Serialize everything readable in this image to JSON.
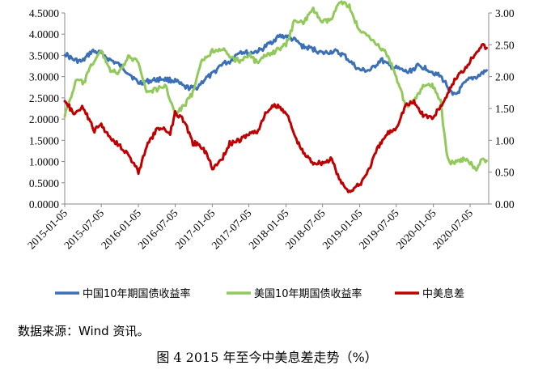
{
  "chart_data": {
    "type": "line",
    "x_ticks": [
      "2015-01-05",
      "2015-07-05",
      "2016-01-05",
      "2016-07-05",
      "2017-01-05",
      "2017-07-05",
      "2018-01-05",
      "2018-07-05",
      "2019-01-05",
      "2019-07-05",
      "2020-01-05",
      "2020-07-05"
    ],
    "y_left": {
      "ticks": [
        "0.0000",
        "0.5000",
        "1.0000",
        "1.5000",
        "2.0000",
        "2.5000",
        "3.0000",
        "3.5000",
        "4.0000",
        "4.5000"
      ],
      "lim": [
        0,
        4.5
      ]
    },
    "y_right": {
      "ticks": [
        "0.00",
        "0.50",
        "1.00",
        "1.50",
        "2.00",
        "2.50",
        "3.00"
      ],
      "lim": [
        0,
        3.0
      ]
    },
    "grid": false,
    "legend_position": "bottom",
    "series": [
      {
        "name": "中国10年期国债收益率",
        "axis": "left",
        "color": "#3b6fb6",
        "points": [
          [
            "2015-01-05",
            3.55
          ],
          [
            "2015-02-15",
            3.4
          ],
          [
            "2015-04-01",
            3.35
          ],
          [
            "2015-05-20",
            3.6
          ],
          [
            "2015-07-05",
            3.55
          ],
          [
            "2015-08-15",
            3.4
          ],
          [
            "2015-09-25",
            3.3
          ],
          [
            "2015-11-15",
            3.1
          ],
          [
            "2016-01-05",
            2.85
          ],
          [
            "2016-03-01",
            2.9
          ],
          [
            "2016-05-01",
            2.95
          ],
          [
            "2016-07-05",
            2.9
          ],
          [
            "2016-08-20",
            2.75
          ],
          [
            "2016-10-15",
            2.72
          ],
          [
            "2016-12-01",
            2.95
          ],
          [
            "2017-01-05",
            3.05
          ],
          [
            "2017-02-20",
            3.3
          ],
          [
            "2017-04-01",
            3.35
          ],
          [
            "2017-05-20",
            3.6
          ],
          [
            "2017-07-05",
            3.55
          ],
          [
            "2017-09-01",
            3.62
          ],
          [
            "2017-10-20",
            3.8
          ],
          [
            "2017-12-01",
            3.95
          ],
          [
            "2018-01-05",
            3.95
          ],
          [
            "2018-02-20",
            3.85
          ],
          [
            "2018-04-01",
            3.7
          ],
          [
            "2018-05-20",
            3.65
          ],
          [
            "2018-07-05",
            3.55
          ],
          [
            "2018-09-01",
            3.6
          ],
          [
            "2018-10-20",
            3.5
          ],
          [
            "2018-12-01",
            3.3
          ],
          [
            "2019-01-05",
            3.15
          ],
          [
            "2019-03-01",
            3.15
          ],
          [
            "2019-04-20",
            3.4
          ],
          [
            "2019-06-01",
            3.25
          ],
          [
            "2019-07-05",
            3.2
          ],
          [
            "2019-09-01",
            3.1
          ],
          [
            "2019-10-20",
            3.25
          ],
          [
            "2019-12-01",
            3.2
          ],
          [
            "2020-01-05",
            3.1
          ],
          [
            "2020-02-10",
            3.0
          ],
          [
            "2020-03-05",
            2.85
          ],
          [
            "2020-04-10",
            2.55
          ],
          [
            "2020-05-01",
            2.6
          ],
          [
            "2020-06-01",
            2.8
          ],
          [
            "2020-07-05",
            2.95
          ],
          [
            "2020-08-10",
            3.0
          ],
          [
            "2020-09-25",
            3.15
          ]
        ]
      },
      {
        "name": "美国10年期国债收益率",
        "axis": "right",
        "color": "#92c95b",
        "points": [
          [
            "2015-01-05",
            1.4
          ],
          [
            "2015-02-01",
            1.65
          ],
          [
            "2015-03-05",
            1.95
          ],
          [
            "2015-04-10",
            1.9
          ],
          [
            "2015-05-20",
            2.2
          ],
          [
            "2015-07-05",
            2.4
          ],
          [
            "2015-08-20",
            2.1
          ],
          [
            "2015-10-01",
            2.05
          ],
          [
            "2015-11-15",
            2.3
          ],
          [
            "2016-01-05",
            2.25
          ],
          [
            "2016-02-15",
            1.75
          ],
          [
            "2016-04-01",
            1.8
          ],
          [
            "2016-05-20",
            1.85
          ],
          [
            "2016-07-05",
            1.4
          ],
          [
            "2016-08-20",
            1.55
          ],
          [
            "2016-10-01",
            1.75
          ],
          [
            "2016-11-15",
            2.25
          ],
          [
            "2017-01-05",
            2.4
          ],
          [
            "2017-02-20",
            2.45
          ],
          [
            "2017-04-01",
            2.3
          ],
          [
            "2017-05-20",
            2.25
          ],
          [
            "2017-07-05",
            2.35
          ],
          [
            "2017-08-20",
            2.2
          ],
          [
            "2017-10-01",
            2.35
          ],
          [
            "2017-11-15",
            2.4
          ],
          [
            "2018-01-05",
            2.5
          ],
          [
            "2018-02-20",
            2.9
          ],
          [
            "2018-04-01",
            2.85
          ],
          [
            "2018-05-20",
            3.05
          ],
          [
            "2018-07-05",
            2.85
          ],
          [
            "2018-08-20",
            2.9
          ],
          [
            "2018-10-01",
            3.2
          ],
          [
            "2018-11-15",
            3.1
          ],
          [
            "2019-01-05",
            2.7
          ],
          [
            "2019-02-20",
            2.65
          ],
          [
            "2019-04-01",
            2.5
          ],
          [
            "2019-05-20",
            2.35
          ],
          [
            "2019-07-05",
            2.0
          ],
          [
            "2019-08-20",
            1.55
          ],
          [
            "2019-10-01",
            1.6
          ],
          [
            "2019-11-15",
            1.85
          ],
          [
            "2020-01-05",
            1.85
          ],
          [
            "2020-02-10",
            1.6
          ],
          [
            "2020-03-10",
            0.8
          ],
          [
            "2020-04-01",
            0.65
          ],
          [
            "2020-05-01",
            0.65
          ],
          [
            "2020-06-01",
            0.7
          ],
          [
            "2020-07-05",
            0.65
          ],
          [
            "2020-08-05",
            0.55
          ],
          [
            "2020-09-01",
            0.7
          ],
          [
            "2020-09-25",
            0.68
          ]
        ]
      },
      {
        "name": "中美息差",
        "axis": "right",
        "color": "#c00000",
        "points": [
          [
            "2015-01-05",
            1.65
          ],
          [
            "2015-02-01",
            1.5
          ],
          [
            "2015-03-01",
            1.4
          ],
          [
            "2015-04-01",
            1.55
          ],
          [
            "2015-05-01",
            1.35
          ],
          [
            "2015-06-01",
            1.15
          ],
          [
            "2015-07-05",
            1.25
          ],
          [
            "2015-08-15",
            1.05
          ],
          [
            "2015-09-25",
            0.95
          ],
          [
            "2015-11-10",
            0.8
          ],
          [
            "2016-01-05",
            0.5
          ],
          [
            "2016-02-15",
            0.9
          ],
          [
            "2016-04-01",
            1.15
          ],
          [
            "2016-05-10",
            1.2
          ],
          [
            "2016-06-10",
            1.1
          ],
          [
            "2016-07-05",
            1.45
          ],
          [
            "2016-08-20",
            1.3
          ],
          [
            "2016-10-01",
            0.95
          ],
          [
            "2016-11-01",
            0.95
          ],
          [
            "2016-12-15",
            0.75
          ],
          [
            "2017-01-05",
            0.55
          ],
          [
            "2017-02-20",
            0.7
          ],
          [
            "2017-04-01",
            0.95
          ],
          [
            "2017-05-20",
            1.0
          ],
          [
            "2017-07-05",
            1.1
          ],
          [
            "2017-08-20",
            1.15
          ],
          [
            "2017-10-01",
            1.45
          ],
          [
            "2017-11-15",
            1.55
          ],
          [
            "2018-01-05",
            1.45
          ],
          [
            "2018-02-20",
            1.05
          ],
          [
            "2018-04-01",
            0.8
          ],
          [
            "2018-05-20",
            0.65
          ],
          [
            "2018-07-05",
            0.65
          ],
          [
            "2018-08-20",
            0.7
          ],
          [
            "2018-10-01",
            0.35
          ],
          [
            "2018-11-15",
            0.2
          ],
          [
            "2019-01-05",
            0.3
          ],
          [
            "2019-02-20",
            0.55
          ],
          [
            "2019-04-01",
            0.85
          ],
          [
            "2019-05-20",
            1.1
          ],
          [
            "2019-07-05",
            1.2
          ],
          [
            "2019-08-20",
            1.55
          ],
          [
            "2019-10-01",
            1.6
          ],
          [
            "2019-11-15",
            1.4
          ],
          [
            "2020-01-05",
            1.35
          ],
          [
            "2020-02-10",
            1.55
          ],
          [
            "2020-03-10",
            1.65
          ],
          [
            "2020-04-01",
            1.85
          ],
          [
            "2020-05-01",
            2.0
          ],
          [
            "2020-06-01",
            2.1
          ],
          [
            "2020-07-05",
            2.25
          ],
          [
            "2020-08-05",
            2.4
          ],
          [
            "2020-09-01",
            2.5
          ],
          [
            "2020-09-25",
            2.45
          ]
        ]
      }
    ]
  },
  "source_text": "数据来源：Wind 资讯。",
  "caption": "图 4 2015 年至今中美息差走势（%）"
}
